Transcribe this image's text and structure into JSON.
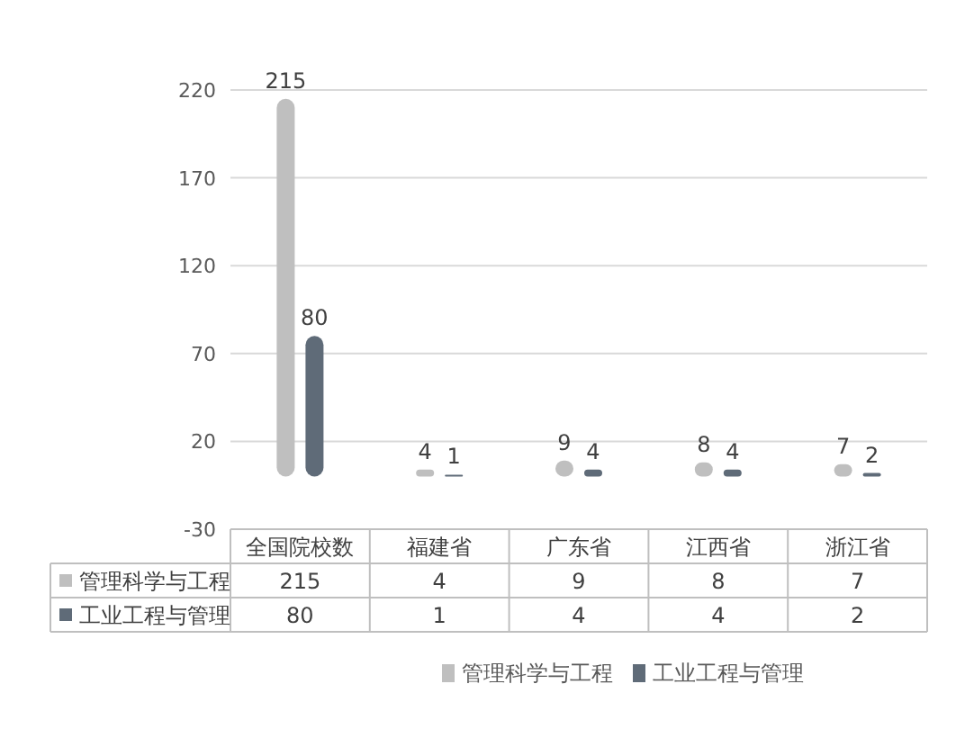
{
  "chart_data": {
    "type": "bar",
    "categories": [
      "全国院校数",
      "福建省",
      "广东省",
      "江西省",
      "浙江省"
    ],
    "series": [
      {
        "name": "管理科学与工程",
        "color": "#bfbfbf",
        "values": [
          215,
          4,
          9,
          8,
          7
        ]
      },
      {
        "name": "工业工程与管理",
        "color": "#5f6b78",
        "values": [
          80,
          1,
          4,
          4,
          2
        ]
      }
    ],
    "annotations": [
      "215",
      "4",
      "9",
      "8",
      "7",
      "80",
      "1",
      "4",
      "4",
      "2"
    ],
    "ylim": [
      -30,
      220
    ],
    "yticks": [
      -30,
      20,
      70,
      120,
      170,
      220
    ],
    "grid": "y",
    "legend": "bottom",
    "data_labels": true
  }
}
